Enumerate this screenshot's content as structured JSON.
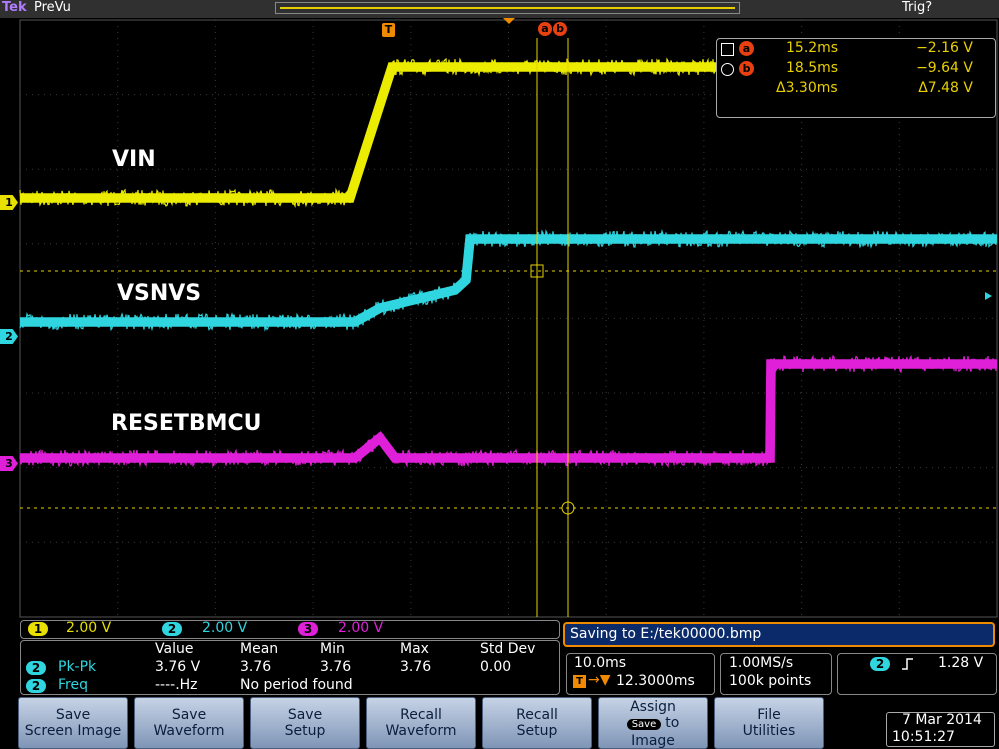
{
  "header": {
    "brand": "Tek",
    "mode": "PreVu",
    "trigger_state": "Trig?"
  },
  "markers": {
    "trigger": "T",
    "cursor_a": "a",
    "cursor_b": "b"
  },
  "cursor_readout": {
    "a": {
      "label": "a",
      "time": "15.2ms",
      "voltage": "−2.16 V"
    },
    "b": {
      "label": "b",
      "time": "18.5ms",
      "voltage": "−9.64 V"
    },
    "delta": {
      "time": "Δ3.30ms",
      "voltage": "Δ7.48 V"
    }
  },
  "traces": [
    {
      "channel": "1",
      "label": "VIN"
    },
    {
      "channel": "2",
      "label": "VSNVS"
    },
    {
      "channel": "3",
      "label": "RESETBMCU"
    }
  ],
  "channel_scales": [
    {
      "channel": "1",
      "scale": "2.00 V"
    },
    {
      "channel": "2",
      "scale": "2.00 V"
    },
    {
      "channel": "3",
      "scale": "2.00 V"
    }
  ],
  "measurements": {
    "columns": [
      "Value",
      "Mean",
      "Min",
      "Max",
      "Std Dev"
    ],
    "rows": [
      [
        "2",
        "Pk-Pk",
        "3.76 V",
        "3.76",
        "3.76",
        "3.76",
        "0.00"
      ],
      [
        "2",
        "Freq",
        "----.Hz",
        "No period found"
      ]
    ]
  },
  "status_message": "Saving to E:/tek00000.bmp",
  "horizontal": {
    "scale": "10.0ms",
    "position": "12.3000ms"
  },
  "acquisition": {
    "rate": "1.00MS/s",
    "record": "100k points"
  },
  "trigger": {
    "source": "2",
    "level": "1.28 V"
  },
  "buttons": [
    [
      "Save",
      "Screen Image"
    ],
    [
      "Save",
      "Waveform"
    ],
    [
      "Save",
      "Setup"
    ],
    [
      "Recall",
      "Waveform"
    ],
    [
      "Recall",
      "Setup"
    ],
    [
      "Assign",
      "Save",
      "to",
      "Image"
    ],
    [
      "File",
      "Utilities"
    ]
  ],
  "datetime": {
    "date": "7 Mar 2014",
    "time": "10:51:27"
  }
}
